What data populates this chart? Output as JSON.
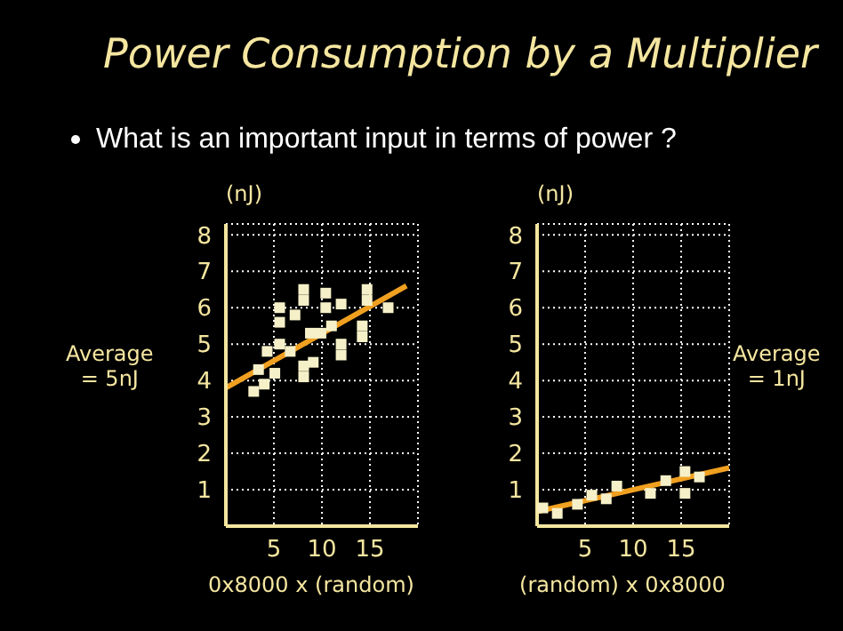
{
  "chart_data": [
    {
      "type": "scatter",
      "title": "Power Consumption by a Multiplier",
      "subtitle": "What is an important input in terms of power ?",
      "ylabel": "(nJ)",
      "xlabel": "0x8000 x (random)",
      "annotations": [
        "Average\n= 5nJ"
      ],
      "xlim": [
        0,
        20
      ],
      "ylim": [
        0,
        8.3
      ],
      "xticks": [
        5,
        10,
        15
      ],
      "yticks": [
        1,
        2,
        3,
        4,
        5,
        6,
        7,
        8
      ],
      "grid": true,
      "series": [
        {
          "color": "#f5f0c8",
          "marker": "square",
          "x": [
            2.9,
            4,
            3.4,
            5.1,
            4.3,
            5.6,
            5.6,
            5.6,
            7.2,
            8.1,
            8.1,
            8.8,
            8.1,
            9.1,
            8.1,
            10.4,
            10.4,
            11,
            12,
            12,
            12,
            14.2,
            14.2,
            14.7,
            14.7,
            16.9,
            6.7,
            9.9
          ],
          "values": [
            3.7,
            3.9,
            4.3,
            4.2,
            4.8,
            5.0,
            5.6,
            6.0,
            5.8,
            6.5,
            6.2,
            5.3,
            4.4,
            4.5,
            4.1,
            6.4,
            6.0,
            5.5,
            6.1,
            5.0,
            4.7,
            5.5,
            5.2,
            6.5,
            6.2,
            6.0,
            4.8,
            5.3
          ]
        },
        {
          "type": "line",
          "color": "#f0a020",
          "marker": "none",
          "x": [
            0,
            18.8
          ],
          "values": [
            3.8,
            6.6
          ]
        }
      ]
    },
    {
      "type": "scatter",
      "ylabel": "(nJ)",
      "xlabel": "(random) x 0x8000",
      "annotations": [
        "Average\n= 1nJ"
      ],
      "xlim": [
        0,
        20
      ],
      "ylim": [
        0,
        8.3
      ],
      "xticks": [
        5,
        10,
        15
      ],
      "yticks": [
        1,
        2,
        3,
        4,
        5,
        6,
        7,
        8
      ],
      "grid": true,
      "series": [
        {
          "color": "#f5f0c8",
          "marker": "square",
          "x": [
            0.6,
            2.1,
            4.2,
            5.7,
            7.2,
            8.3,
            11.8,
            13.4,
            15.4,
            15.4,
            16.9
          ],
          "values": [
            0.5,
            0.35,
            0.6,
            0.85,
            0.75,
            1.1,
            0.9,
            1.25,
            0.9,
            1.5,
            1.35
          ]
        },
        {
          "type": "line",
          "color": "#f0a020",
          "marker": "none",
          "x": [
            0,
            20
          ],
          "values": [
            0.4,
            1.6
          ]
        }
      ]
    }
  ]
}
